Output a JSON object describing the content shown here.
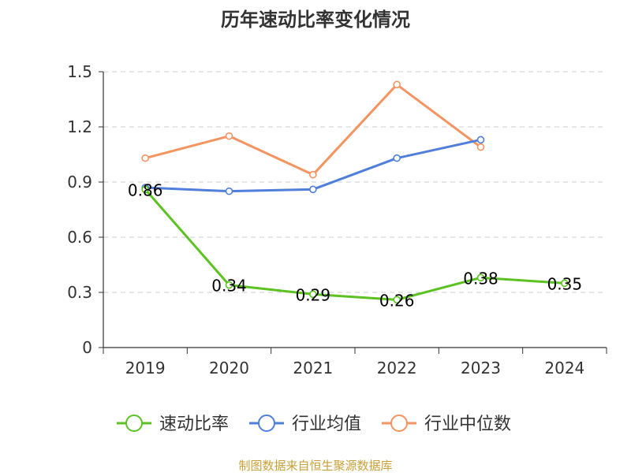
{
  "chart_data": {
    "type": "line",
    "title": "历年速动比率变化情况",
    "categories": [
      "2019",
      "2020",
      "2021",
      "2022",
      "2023",
      "2024"
    ],
    "ylim": [
      0,
      1.5
    ],
    "yticks": [
      0,
      0.3,
      0.6,
      0.9,
      1.2,
      1.5
    ],
    "ytick_labels": [
      "0",
      "0.3",
      "0.6",
      "0.9",
      "1.2",
      "1.5"
    ],
    "grid": true,
    "legend_position": "bottom",
    "series": [
      {
        "name": "速动比率",
        "color": "#5bc221",
        "values": [
          0.86,
          0.34,
          0.29,
          0.26,
          0.38,
          0.35
        ],
        "labels": [
          "0.86",
          "0.34",
          "0.29",
          "0.26",
          "0.38",
          "0.35"
        ]
      },
      {
        "name": "行业均值",
        "color": "#4f7fda",
        "values": [
          0.87,
          0.85,
          0.86,
          1.03,
          1.13,
          null
        ]
      },
      {
        "name": "行业中位数",
        "color": "#f39461",
        "values": [
          1.03,
          1.15,
          0.94,
          1.43,
          1.09,
          null
        ]
      }
    ]
  },
  "source": "制图数据来自恒生聚源数据库",
  "colors": {
    "title": "#333333",
    "axis": "#333333",
    "tick_label": "#333333",
    "grid": "#cccccc",
    "source": "#c8a03a",
    "data_label": "#000000"
  }
}
